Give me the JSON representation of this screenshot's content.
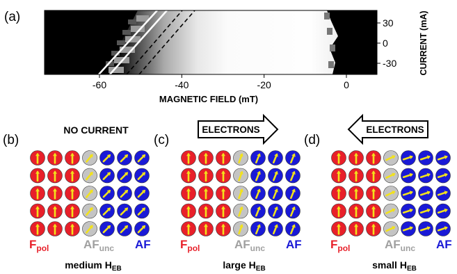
{
  "panel_a": {
    "label": "(a)",
    "xlabel": "MAGNETIC FIELD (mT)",
    "ylabel": "CURRENT (mA)",
    "xticks": [
      {
        "value": -60,
        "label": "-60"
      },
      {
        "value": -40,
        "label": "-40"
      },
      {
        "value": -20,
        "label": "-20"
      },
      {
        "value": 0,
        "label": "0"
      }
    ],
    "yticks": [
      {
        "value": 30,
        "label": "30"
      },
      {
        "value": 0,
        "label": "0"
      },
      {
        "value": -30,
        "label": "-30"
      }
    ]
  },
  "panels": [
    {
      "id": "b",
      "label": "(b)",
      "header": "NO CURRENT",
      "arrow": "none",
      "f_label": "F",
      "f_sub": "pol",
      "afunc_label": "AF",
      "afunc_sub": "unc",
      "af_label": "AF",
      "caption_main": "medium H",
      "caption_sub": "EB",
      "unc_angle": 40,
      "af_angle": 45
    },
    {
      "id": "c",
      "label": "(c)",
      "header": "ELECTRONS",
      "arrow": "right",
      "f_label": "F",
      "f_sub": "pol",
      "afunc_label": "AF",
      "afunc_sub": "unc",
      "af_label": "AF",
      "caption_main": "large H",
      "caption_sub": "EB",
      "unc_angle": 20,
      "af_angle": 22
    },
    {
      "id": "d",
      "label": "(d)",
      "header": "ELECTRONS",
      "arrow": "left",
      "f_label": "F",
      "f_sub": "pol",
      "afunc_label": "AF",
      "afunc_sub": "unc",
      "af_label": "AF",
      "caption_main": "small H",
      "caption_sub": "EB",
      "unc_angle": 65,
      "af_angle": 72
    }
  ],
  "colors": {
    "f_fill": "#e8202a",
    "af_fill": "#1a1ad6",
    "unc_fill": "#c4c4c4",
    "spin_arrow": "#f2e21c",
    "f_label": "#e8202a",
    "af_label": "#1a1ad6",
    "unc_label": "#a0a0a0",
    "white_line": "#ffffff",
    "black": "#000000"
  }
}
